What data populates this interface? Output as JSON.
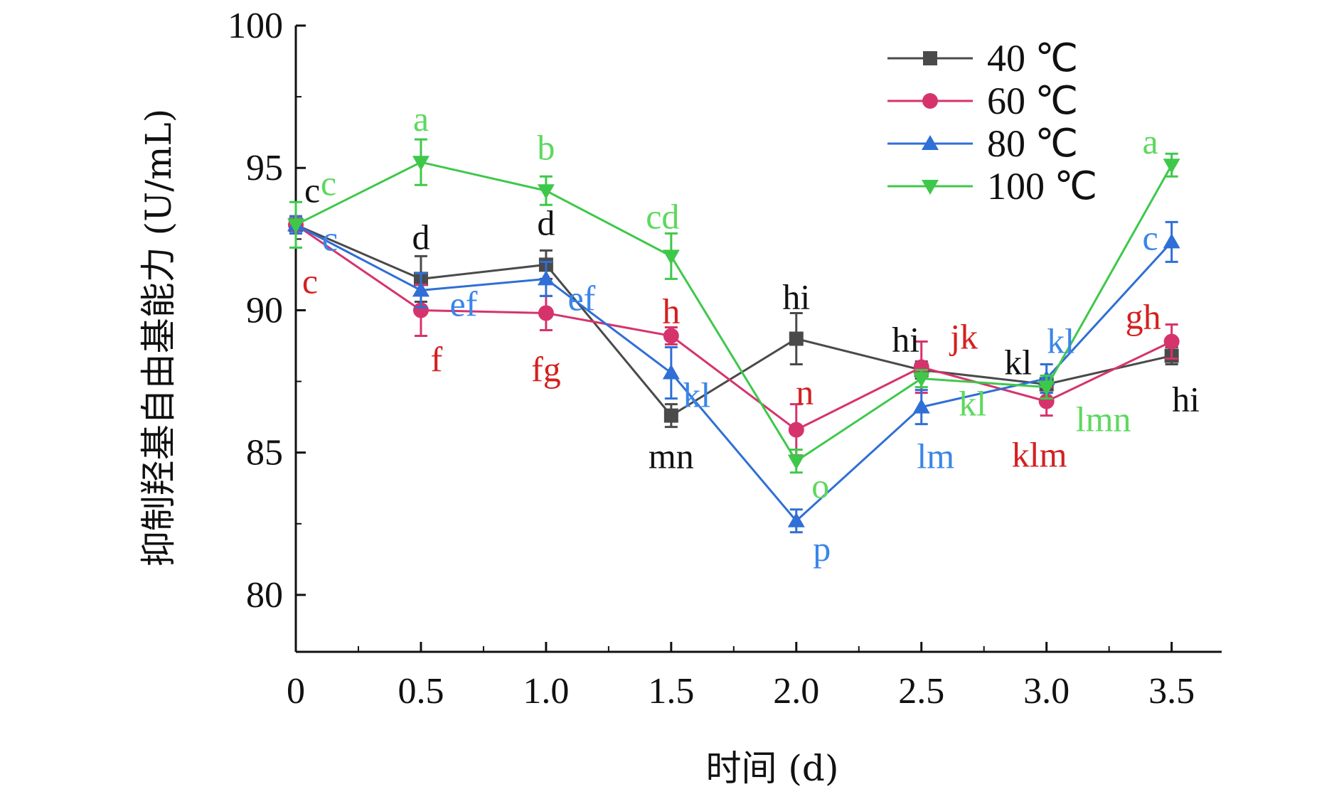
{
  "chart_data": {
    "type": "line",
    "title": "",
    "xlabel": "时间 (d)",
    "ylabel": "抑制羟基自由基能力 (U/mL)",
    "xlim": [
      0,
      3.7
    ],
    "ylim": [
      78,
      100
    ],
    "x_ticks": [
      0,
      0.5,
      1.0,
      1.5,
      2.0,
      2.5,
      3.0,
      3.5
    ],
    "x_tick_labels": [
      "0",
      "0.5",
      "1.0",
      "1.5",
      "2.0",
      "2.5",
      "3.0",
      "3.5"
    ],
    "y_ticks": [
      80,
      85,
      90,
      95,
      100
    ],
    "y_tick_labels": [
      "80",
      "85",
      "90",
      "95",
      "100"
    ],
    "legend_position": "top-right",
    "x": [
      0,
      0.5,
      1.0,
      1.5,
      2.0,
      2.5,
      3.0,
      3.5
    ],
    "series": [
      {
        "name": "40 ℃",
        "color": "#4a4a4a",
        "label_color": "#111111",
        "marker": "square",
        "values": [
          93.0,
          91.1,
          91.6,
          86.3,
          89.0,
          87.9,
          87.4,
          88.4
        ],
        "errors": [
          0.3,
          0.8,
          0.5,
          0.4,
          0.9,
          0.3,
          0.3,
          0.3
        ],
        "letters": [
          "c",
          "d",
          "d",
          "mn",
          "hi",
          "hi",
          "kl",
          "hi"
        ]
      },
      {
        "name": "60 ℃",
        "color": "#d6336c",
        "label_color": "#d42020",
        "marker": "circle",
        "values": [
          93.0,
          90.0,
          89.9,
          89.1,
          85.8,
          88.0,
          86.8,
          88.9
        ],
        "errors": [
          0.3,
          0.9,
          0.6,
          0.3,
          0.9,
          0.9,
          0.5,
          0.6
        ],
        "letters": [
          "c",
          "f",
          "fg",
          "h",
          "n",
          "jk",
          "klm",
          "gh"
        ]
      },
      {
        "name": "80 ℃",
        "color": "#2f6fd6",
        "label_color": "#3a86e8",
        "marker": "triangle-up",
        "values": [
          93.0,
          90.7,
          91.1,
          87.8,
          82.6,
          86.6,
          87.6,
          92.4
        ],
        "errors": [
          0.3,
          0.6,
          0.6,
          0.9,
          0.4,
          0.6,
          0.5,
          0.7
        ],
        "letters": [
          "c",
          "ef",
          "ef",
          "kl",
          "p",
          "lm",
          "kl",
          "c"
        ]
      },
      {
        "name": "100 ℃",
        "color": "#3ec84a",
        "label_color": "#5ed85e",
        "marker": "triangle-down",
        "values": [
          93.0,
          95.2,
          94.2,
          91.9,
          84.7,
          87.6,
          87.3,
          95.1
        ],
        "errors": [
          0.8,
          0.8,
          0.5,
          0.8,
          0.4,
          0.3,
          0.4,
          0.4
        ],
        "letters": [
          "c",
          "a",
          "b",
          "cd",
          "o",
          "kl",
          "lmn",
          "a"
        ]
      }
    ]
  }
}
